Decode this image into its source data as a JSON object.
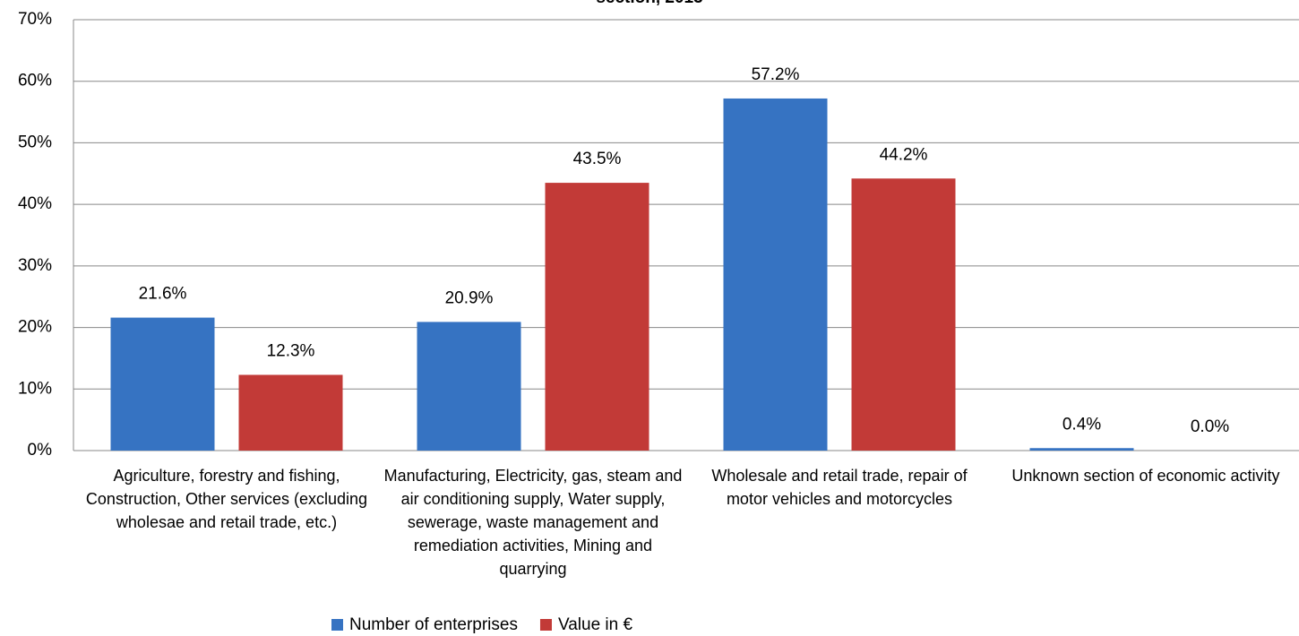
{
  "chart_data": {
    "type": "bar",
    "title": "section, 2013",
    "categories": [
      "Agriculture, forestry and fishing, Construction, Other services (excluding wholesae and retail trade, etc.)",
      "Manufacturing, Electricity, gas, steam and air conditioning supply, Water supply, sewerage, waste management and remediation activities, Mining and quarrying",
      "Wholesale and retail trade, repair of motor vehicles and motorcycles",
      "Unknown section of economic activity"
    ],
    "series": [
      {
        "name": "Number of enterprises",
        "color": "#3673c2",
        "values": [
          21.6,
          20.9,
          57.2,
          0.4
        ],
        "value_labels": [
          "21.6%",
          "20.9%",
          "57.2%",
          "0.4%"
        ]
      },
      {
        "name": "Value in €",
        "color": "#c23a37",
        "values": [
          12.3,
          43.5,
          44.2,
          0
        ],
        "value_labels": [
          "12.3%",
          "43.5%",
          "44.2%",
          "0.0%"
        ]
      }
    ],
    "ylim": [
      0,
      70
    ],
    "yticks": [
      {
        "value": 0,
        "label": "0%"
      },
      {
        "value": 10,
        "label": "10%"
      },
      {
        "value": 20,
        "label": "20%"
      },
      {
        "value": 30,
        "label": "30%"
      },
      {
        "value": 40,
        "label": "40%"
      },
      {
        "value": 50,
        "label": "50%"
      },
      {
        "value": 60,
        "label": "60%"
      },
      {
        "value": 70,
        "label": "70%"
      }
    ],
    "grid": true,
    "legend": "bottom"
  }
}
